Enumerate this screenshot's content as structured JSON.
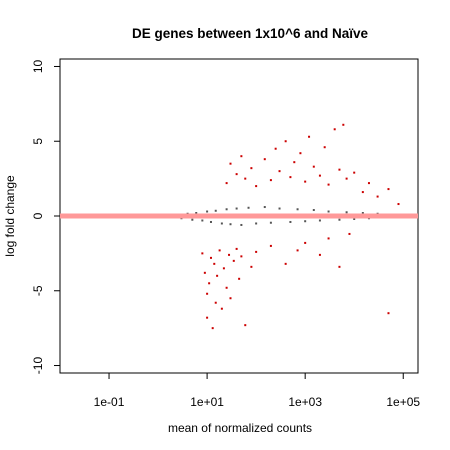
{
  "chart_data": {
    "type": "scatter",
    "title": "DE genes between 1x10^6 and Naïve",
    "xlabel": "mean of normalized counts",
    "ylabel": "log fold change",
    "x_scale": "log10",
    "xlim": [
      0.01,
      200000
    ],
    "ylim": [
      -10.5,
      10.5
    ],
    "x_ticks": [
      {
        "value": 0.1,
        "label": "1e-01"
      },
      {
        "value": 10,
        "label": "1e+01"
      },
      {
        "value": 1000,
        "label": "1e+03"
      },
      {
        "value": 100000,
        "label": "1e+05"
      }
    ],
    "y_ticks": [
      {
        "value": -10,
        "label": "-10"
      },
      {
        "value": -5,
        "label": "-5"
      },
      {
        "value": 0,
        "label": "0"
      },
      {
        "value": 5,
        "label": "5"
      },
      {
        "value": 10,
        "label": "10"
      }
    ],
    "reference_line": {
      "y": 0,
      "color": "#ff9999"
    },
    "colors": {
      "not_significant": "#555555",
      "significant": "#cc0000"
    },
    "series": [
      {
        "significant": false,
        "points": [
          [
            0.1,
            0.0
          ],
          [
            0.2,
            -0.05
          ],
          [
            0.3,
            0.02
          ],
          [
            0.5,
            0.0
          ],
          [
            0.7,
            -0.08
          ],
          [
            1.0,
            0.05
          ],
          [
            1.5,
            -0.1
          ],
          [
            2.0,
            0.1
          ],
          [
            3.0,
            -0.15
          ],
          [
            4.0,
            0.15
          ],
          [
            5.0,
            -0.25
          ],
          [
            6.0,
            0.2
          ],
          [
            8.0,
            -0.3
          ],
          [
            10.0,
            0.3
          ],
          [
            12.0,
            -0.4
          ],
          [
            15.0,
            0.35
          ],
          [
            20.0,
            -0.5
          ],
          [
            25.0,
            0.45
          ],
          [
            30.0,
            -0.55
          ],
          [
            40.0,
            0.5
          ],
          [
            50.0,
            -0.6
          ],
          [
            70.0,
            0.55
          ],
          [
            100.0,
            -0.5
          ],
          [
            150.0,
            0.6
          ],
          [
            200.0,
            -0.45
          ],
          [
            300.0,
            0.5
          ],
          [
            500.0,
            -0.4
          ],
          [
            700.0,
            0.45
          ],
          [
            1000.0,
            -0.35
          ],
          [
            1500.0,
            0.4
          ],
          [
            2000.0,
            -0.3
          ],
          [
            3000.0,
            0.3
          ],
          [
            5000.0,
            -0.25
          ],
          [
            7000.0,
            0.25
          ],
          [
            10000.0,
            -0.2
          ],
          [
            15000.0,
            0.2
          ],
          [
            20000.0,
            -0.15
          ],
          [
            30000.0,
            0.15
          ],
          [
            50000.0,
            -0.1
          ],
          [
            80000.0,
            0.1
          ]
        ]
      },
      {
        "significant": true,
        "points": [
          [
            8.0,
            -2.5
          ],
          [
            9.0,
            -3.8
          ],
          [
            10.0,
            -5.2
          ],
          [
            10.0,
            -6.8
          ],
          [
            11.0,
            -4.5
          ],
          [
            12.0,
            -2.8
          ],
          [
            13.0,
            -7.5
          ],
          [
            14.0,
            -3.2
          ],
          [
            15.0,
            -5.8
          ],
          [
            16.0,
            -4.0
          ],
          [
            18.0,
            -2.3
          ],
          [
            20.0,
            -6.2
          ],
          [
            22.0,
            -3.5
          ],
          [
            25.0,
            -4.8
          ],
          [
            28.0,
            -2.6
          ],
          [
            30.0,
            -5.5
          ],
          [
            35.0,
            -3.0
          ],
          [
            40.0,
            -2.2
          ],
          [
            45.0,
            -4.2
          ],
          [
            50.0,
            -2.7
          ],
          [
            60.0,
            -7.3
          ],
          [
            80.0,
            -3.4
          ],
          [
            100.0,
            -2.4
          ],
          [
            25.0,
            2.2
          ],
          [
            30.0,
            3.5
          ],
          [
            40.0,
            2.8
          ],
          [
            50.0,
            4.0
          ],
          [
            60.0,
            2.5
          ],
          [
            80.0,
            3.2
          ],
          [
            100.0,
            2.0
          ],
          [
            150.0,
            3.8
          ],
          [
            200.0,
            2.4
          ],
          [
            250.0,
            4.5
          ],
          [
            300.0,
            3.0
          ],
          [
            400.0,
            5.0
          ],
          [
            500.0,
            2.6
          ],
          [
            600.0,
            3.6
          ],
          [
            800.0,
            4.2
          ],
          [
            1000.0,
            2.3
          ],
          [
            1200.0,
            5.3
          ],
          [
            1500.0,
            3.3
          ],
          [
            2000.0,
            2.7
          ],
          [
            2500.0,
            4.6
          ],
          [
            3000.0,
            2.1
          ],
          [
            4000.0,
            5.8
          ],
          [
            5000.0,
            3.1
          ],
          [
            6000.0,
            6.1
          ],
          [
            7000.0,
            2.5
          ],
          [
            10000.0,
            2.9
          ],
          [
            15000.0,
            1.6
          ],
          [
            20000.0,
            2.2
          ],
          [
            30000.0,
            1.3
          ],
          [
            50000.0,
            1.8
          ],
          [
            80000.0,
            0.8
          ],
          [
            200.0,
            -2.0
          ],
          [
            400.0,
            -3.2
          ],
          [
            700.0,
            -2.3
          ],
          [
            1000.0,
            -1.8
          ],
          [
            2000.0,
            -2.6
          ],
          [
            3000.0,
            -1.5
          ],
          [
            5000.0,
            -3.4
          ],
          [
            8000.0,
            -1.2
          ],
          [
            50000.0,
            -6.5
          ]
        ]
      }
    ]
  }
}
